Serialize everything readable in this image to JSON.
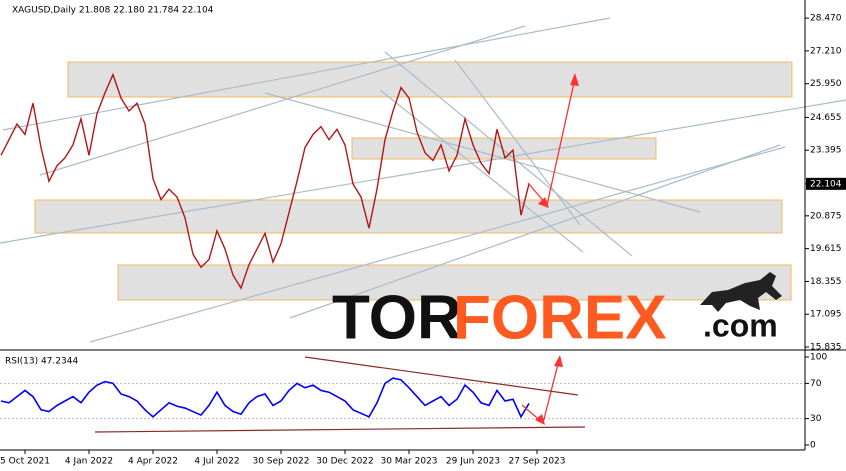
{
  "chart_data": [
    {
      "type": "line",
      "title": "XAGUSD,Daily  21.808 22.180 21.784 22.104",
      "series": [
        {
          "color": "#b01818",
          "values": [
            23.2,
            23.8,
            24.4,
            24.0,
            25.2,
            23.5,
            22.2,
            22.8,
            23.1,
            23.6,
            24.6,
            23.2,
            24.8,
            25.6,
            26.3,
            25.4,
            24.9,
            25.2,
            24.4,
            22.3,
            21.5,
            21.9,
            21.6,
            20.8,
            19.4,
            18.9,
            19.2,
            20.3,
            19.6,
            18.6,
            18.1,
            19.0,
            19.6,
            20.2,
            19.1,
            19.8,
            21.0,
            22.2,
            23.5,
            24.0,
            24.3,
            23.8,
            24.2,
            23.6,
            22.1,
            21.6,
            20.4,
            21.9,
            23.8,
            24.9,
            25.8,
            25.4,
            24.1,
            23.3,
            23.0,
            23.6,
            22.6,
            23.2,
            24.6,
            23.6,
            22.9,
            22.5,
            24.2,
            23.1,
            23.4,
            20.9,
            22.104,
            null
          ]
        }
      ],
      "ylim": [
        15.76,
        29.05
      ],
      "yticks": [
        {
          "value": 28.47,
          "label": "28.470"
        },
        {
          "value": 27.21,
          "label": "27.210"
        },
        {
          "value": 25.95,
          "label": "25.950"
        },
        {
          "value": 24.655,
          "label": "24.655"
        },
        {
          "value": 23.395,
          "label": "23.395"
        },
        {
          "value": 22.104,
          "label": "22.104",
          "current": true
        },
        {
          "value": 20.875,
          "label": "20.875"
        },
        {
          "value": 19.615,
          "label": "19.615"
        },
        {
          "value": 18.355,
          "label": "18.355"
        },
        {
          "value": 17.095,
          "label": "17.095"
        },
        {
          "value": 15.835,
          "label": "15.835"
        }
      ]
    },
    {
      "type": "line",
      "title": "RSI(13) 47.2344",
      "categories": [
        null,
        null,
        null,
        "5 Oct 2021",
        null,
        null,
        null,
        null,
        null,
        null,
        null,
        "4 Jan 2022",
        null,
        null,
        null,
        null,
        null,
        null,
        null,
        "4 Apr 2022",
        null,
        null,
        null,
        null,
        null,
        null,
        null,
        "4 Jul 2022",
        null,
        null,
        null,
        null,
        null,
        null,
        null,
        "30 Sep 2022",
        null,
        null,
        null,
        null,
        null,
        null,
        null,
        "30 Dec 2022",
        null,
        null,
        null,
        null,
        null,
        null,
        null,
        "30 Mar 2023",
        null,
        null,
        null,
        null,
        null,
        null,
        null,
        "29 Jun 2023",
        null,
        null,
        null,
        null,
        null,
        null,
        null,
        "27 Sep 2023"
      ],
      "series": [
        {
          "color": "#0000ff",
          "values": [
            50,
            48,
            55,
            62,
            55,
            40,
            38,
            45,
            50,
            55,
            48,
            60,
            68,
            72,
            70,
            58,
            55,
            50,
            40,
            32,
            40,
            48,
            44,
            42,
            38,
            34,
            45,
            60,
            45,
            38,
            35,
            48,
            55,
            58,
            45,
            50,
            62,
            70,
            65,
            68,
            62,
            60,
            55,
            50,
            40,
            36,
            32,
            48,
            70,
            76,
            74,
            65,
            55,
            45,
            50,
            55,
            45,
            52,
            68,
            60,
            48,
            45,
            62,
            50,
            52,
            32,
            47.2344,
            null
          ]
        }
      ],
      "ylim": [
        0,
        100
      ],
      "yticks": [
        100,
        70,
        30,
        0
      ],
      "grid": true
    }
  ],
  "watermark": {
    "part1": "TOR",
    "part2": "FOREX",
    "suffix": ".com"
  }
}
